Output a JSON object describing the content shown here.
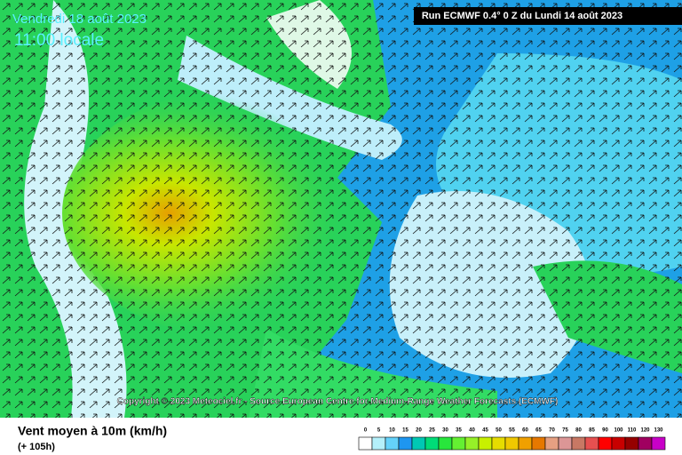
{
  "header": {
    "date": "Vendredi 18 août 2023",
    "time": "11:00 locale",
    "run": "Run ECMWF 0.4° 0 Z du Lundi 14 août 2023"
  },
  "copyright": "Copyright © 2023 Meteociel.fr - Source European Centre for Medium-Range Weather Forecasts (ECMWF)",
  "footer": {
    "title": "Vent moyen à 10m (km/h)",
    "subtitle": "(+ 105h)"
  },
  "legend": {
    "values": [
      0,
      5,
      10,
      15,
      20,
      25,
      30,
      35,
      40,
      45,
      50,
      55,
      60,
      65,
      70,
      75,
      80,
      85,
      90,
      100,
      110,
      120,
      130
    ],
    "colors": [
      "#ffffff",
      "#b4f0fa",
      "#64d2fa",
      "#1e96f0",
      "#00c8b4",
      "#00dc78",
      "#28e63c",
      "#64f032",
      "#96f028",
      "#c8f000",
      "#e6dc00",
      "#f0c800",
      "#f0a000",
      "#e67800",
      "#e6a082",
      "#dc9696",
      "#c87864",
      "#e65050",
      "#ff0000",
      "#c80000",
      "#960000",
      "#a00060",
      "#c800c8"
    ]
  }
}
